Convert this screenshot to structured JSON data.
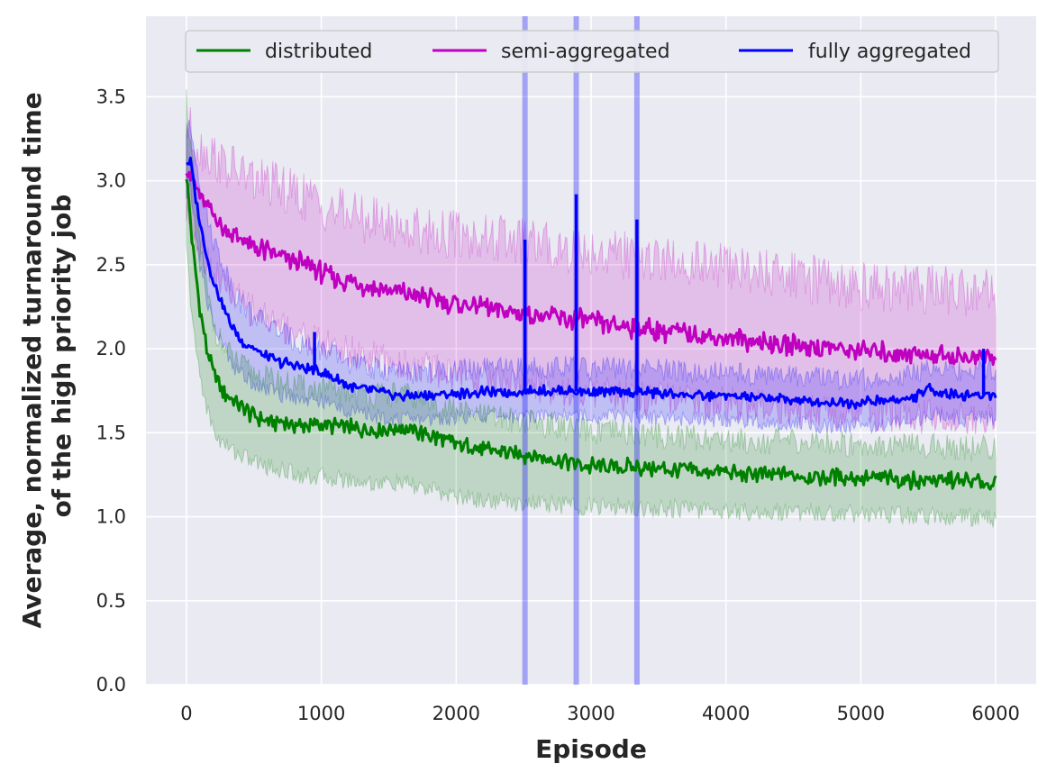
{
  "chart_data": {
    "type": "line",
    "xlabel": "Episode",
    "ylabel_lines": [
      "Average, normalized turnaround time",
      "of the high priority job"
    ],
    "xlim": [
      -300,
      6300
    ],
    "ylim": [
      0,
      3.98
    ],
    "xticks": [
      0,
      1000,
      2000,
      3000,
      4000,
      5000,
      6000
    ],
    "yticks": [
      0.0,
      0.5,
      1.0,
      1.5,
      2.0,
      2.5,
      3.0,
      3.5
    ],
    "xtick_labels": [
      "0",
      "1000",
      "2000",
      "3000",
      "4000",
      "5000",
      "6000"
    ],
    "ytick_labels": [
      "0.0",
      "0.5",
      "1.0",
      "1.5",
      "2.0",
      "2.5",
      "3.0",
      "3.5"
    ],
    "grid": true,
    "legend_placement": "top-center",
    "series": [
      {
        "name": "distributed",
        "color": "#008000",
        "x": [
          0,
          30,
          60,
          100,
          150,
          200,
          250,
          300,
          400,
          500,
          600,
          700,
          800,
          900,
          1000,
          1200,
          1400,
          1600,
          1800,
          2000,
          2200,
          2400,
          2600,
          2800,
          3000,
          3200,
          3400,
          3600,
          3800,
          4000,
          4200,
          4400,
          4600,
          4800,
          5000,
          5200,
          5400,
          5600,
          5800,
          6000
        ],
        "mean": [
          3.05,
          2.75,
          2.5,
          2.25,
          2.0,
          1.85,
          1.78,
          1.72,
          1.65,
          1.6,
          1.57,
          1.56,
          1.55,
          1.54,
          1.55,
          1.53,
          1.52,
          1.53,
          1.48,
          1.43,
          1.4,
          1.38,
          1.36,
          1.33,
          1.3,
          1.3,
          1.29,
          1.28,
          1.27,
          1.26,
          1.25,
          1.25,
          1.24,
          1.24,
          1.23,
          1.23,
          1.22,
          1.22,
          1.21,
          1.2
        ],
        "upper": [
          3.5,
          3.2,
          2.95,
          2.65,
          2.35,
          2.15,
          2.05,
          1.98,
          1.9,
          1.85,
          1.82,
          1.8,
          1.78,
          1.76,
          1.76,
          1.74,
          1.72,
          1.73,
          1.68,
          1.63,
          1.6,
          1.58,
          1.56,
          1.53,
          1.5,
          1.5,
          1.49,
          1.48,
          1.47,
          1.46,
          1.45,
          1.45,
          1.44,
          1.44,
          1.43,
          1.43,
          1.42,
          1.42,
          1.41,
          1.4
        ],
        "lower": [
          2.6,
          2.3,
          2.05,
          1.85,
          1.65,
          1.52,
          1.45,
          1.42,
          1.37,
          1.33,
          1.3,
          1.28,
          1.26,
          1.24,
          1.24,
          1.22,
          1.2,
          1.2,
          1.16,
          1.12,
          1.1,
          1.09,
          1.08,
          1.07,
          1.06,
          1.06,
          1.05,
          1.05,
          1.04,
          1.04,
          1.03,
          1.03,
          1.03,
          1.02,
          1.02,
          1.01,
          1.01,
          1.0,
          1.0,
          0.99
        ]
      },
      {
        "name": "semi-aggregated",
        "color": "#c000c0",
        "x": [
          0,
          50,
          100,
          200,
          300,
          400,
          500,
          600,
          700,
          800,
          900,
          1000,
          1200,
          1400,
          1600,
          1800,
          2000,
          2200,
          2400,
          2600,
          2800,
          3000,
          3200,
          3400,
          3600,
          3800,
          4000,
          4200,
          4400,
          4600,
          4800,
          5000,
          5200,
          5400,
          5600,
          5800,
          6000
        ],
        "mean": [
          3.1,
          3.0,
          2.9,
          2.8,
          2.7,
          2.65,
          2.6,
          2.58,
          2.55,
          2.52,
          2.5,
          2.45,
          2.4,
          2.36,
          2.33,
          2.3,
          2.27,
          2.25,
          2.22,
          2.2,
          2.18,
          2.16,
          2.14,
          2.12,
          2.1,
          2.08,
          2.06,
          2.05,
          2.03,
          2.02,
          2.0,
          1.99,
          1.98,
          1.97,
          1.96,
          1.95,
          1.95
        ],
        "upper": [
          3.35,
          3.25,
          3.2,
          3.15,
          3.08,
          3.05,
          3.0,
          2.98,
          2.95,
          2.92,
          2.9,
          2.85,
          2.8,
          2.76,
          2.72,
          2.7,
          2.68,
          2.66,
          2.64,
          2.62,
          2.6,
          2.58,
          2.56,
          2.54,
          2.52,
          2.5,
          2.48,
          2.46,
          2.44,
          2.42,
          2.4,
          2.38,
          2.37,
          2.36,
          2.35,
          2.34,
          2.33
        ],
        "lower": [
          2.8,
          2.72,
          2.6,
          2.45,
          2.35,
          2.28,
          2.22,
          2.18,
          2.14,
          2.1,
          2.07,
          2.03,
          1.98,
          1.94,
          1.9,
          1.88,
          1.85,
          1.83,
          1.8,
          1.78,
          1.76,
          1.74,
          1.72,
          1.7,
          1.69,
          1.68,
          1.67,
          1.66,
          1.65,
          1.64,
          1.63,
          1.62,
          1.61,
          1.6,
          1.59,
          1.58,
          1.57
        ]
      },
      {
        "name": "fully aggregated",
        "color": "#0000ff",
        "x": [
          0,
          30,
          60,
          100,
          150,
          200,
          250,
          300,
          350,
          400,
          500,
          600,
          700,
          800,
          900,
          1000,
          1100,
          1200,
          1300,
          1400,
          1500,
          1600,
          1800,
          2000,
          2200,
          2400,
          2600,
          2800,
          3000,
          3200,
          3400,
          3600,
          3800,
          4000,
          4200,
          4400,
          4600,
          4800,
          5000,
          5200,
          5400,
          5500,
          5600,
          5800,
          6000
        ],
        "mean": [
          3.1,
          3.12,
          2.95,
          2.75,
          2.55,
          2.4,
          2.3,
          2.2,
          2.12,
          2.05,
          2.0,
          1.95,
          1.92,
          1.9,
          1.88,
          1.86,
          1.82,
          1.78,
          1.76,
          1.75,
          1.73,
          1.72,
          1.72,
          1.73,
          1.74,
          1.74,
          1.75,
          1.75,
          1.74,
          1.74,
          1.74,
          1.73,
          1.72,
          1.72,
          1.71,
          1.7,
          1.69,
          1.68,
          1.68,
          1.69,
          1.71,
          1.76,
          1.74,
          1.72,
          1.73
        ],
        "upper": [
          3.3,
          3.3,
          3.2,
          3.0,
          2.8,
          2.65,
          2.55,
          2.45,
          2.35,
          2.28,
          2.2,
          2.15,
          2.1,
          2.05,
          2.02,
          2.0,
          1.96,
          1.92,
          1.9,
          1.88,
          1.87,
          1.86,
          1.86,
          1.87,
          1.88,
          1.88,
          1.89,
          1.89,
          1.88,
          1.88,
          1.88,
          1.87,
          1.86,
          1.86,
          1.85,
          1.84,
          1.83,
          1.82,
          1.82,
          1.83,
          1.85,
          1.9,
          1.88,
          1.86,
          1.87
        ],
        "lower": [
          2.9,
          2.95,
          2.75,
          2.5,
          2.3,
          2.15,
          2.05,
          1.98,
          1.9,
          1.85,
          1.8,
          1.76,
          1.73,
          1.71,
          1.7,
          1.69,
          1.66,
          1.63,
          1.61,
          1.6,
          1.59,
          1.58,
          1.58,
          1.59,
          1.6,
          1.6,
          1.61,
          1.61,
          1.6,
          1.6,
          1.6,
          1.59,
          1.58,
          1.58,
          1.57,
          1.56,
          1.55,
          1.54,
          1.54,
          1.55,
          1.57,
          1.62,
          1.6,
          1.58,
          1.59
        ],
        "spikes": [
          {
            "x": 950,
            "y": 2.1
          },
          {
            "x": 2510,
            "y": 2.65
          },
          {
            "x": 2890,
            "y": 2.92
          },
          {
            "x": 3340,
            "y": 2.77
          },
          {
            "x": 5910,
            "y": 2.0
          }
        ],
        "shaded_vertical_bands_x": [
          2510,
          2890,
          3340
        ]
      }
    ]
  }
}
